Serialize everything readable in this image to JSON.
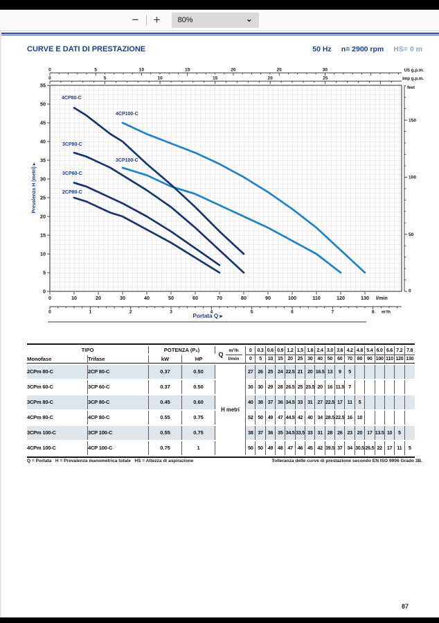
{
  "toolbar": {
    "zoom_out": "−",
    "zoom_in": "+",
    "zoom_level": "80%"
  },
  "header": {
    "title": "CURVE E DATI DI PRESTAZIONE",
    "frequency": "50 Hz",
    "speed": "n= 2900 rpm",
    "suction": "HS= 0 m"
  },
  "chart_data": {
    "type": "line",
    "xlabel": "Portata Q",
    "ylabel": "Prevalenza H (metri)",
    "grid": true,
    "legend_position": "labels-on-curves",
    "axes": {
      "x_lmin": {
        "unit": "l/min",
        "ticks": [
          0,
          10,
          20,
          30,
          40,
          50,
          60,
          70,
          80,
          90,
          100,
          110,
          120,
          130
        ]
      },
      "x_m3h": {
        "unit": "m³/h",
        "ticks": [
          0,
          1,
          2,
          3,
          4,
          5,
          6,
          7,
          8
        ]
      },
      "x_usgpm": {
        "unit": "US g.p.m.",
        "ticks": [
          0,
          5,
          10,
          15,
          20,
          25,
          30
        ]
      },
      "x_impgpm": {
        "unit": "Imp g.p.m.",
        "ticks": [
          0,
          5,
          10,
          15,
          20,
          25
        ]
      },
      "y_m": {
        "unit": "metri",
        "ticks": [
          0,
          5,
          10,
          15,
          20,
          25,
          30,
          35,
          40,
          45,
          50,
          55
        ],
        "range": [
          0,
          55
        ]
      },
      "y_feet": {
        "unit": "feet",
        "ticks": [
          0,
          50,
          100,
          150
        ]
      }
    },
    "series": [
      {
        "name": "4CP100-C",
        "color": "#1e83c9",
        "label_pos": [
          128,
          71
        ],
        "q_lmin": [
          30,
          40,
          50,
          60,
          70,
          80,
          90,
          100,
          110,
          120,
          130
        ],
        "h_m": [
          45,
          42,
          39.5,
          37,
          34,
          30.5,
          26.5,
          22,
          17,
          11,
          5
        ]
      },
      {
        "name": "3CP100-C",
        "color": "#1e83c9",
        "label_pos": [
          128,
          138
        ],
        "q_lmin": [
          30,
          40,
          50,
          60,
          70,
          80,
          90,
          100,
          110,
          120
        ],
        "h_m": [
          33,
          31,
          28,
          26,
          23,
          20,
          17,
          13.5,
          10,
          5
        ]
      },
      {
        "name": "4CP80-C",
        "color": "#17356e",
        "label_pos": [
          50,
          48
        ],
        "q_lmin": [
          10,
          15,
          20,
          25,
          30,
          40,
          50,
          60,
          70,
          80
        ],
        "h_m": [
          49,
          47,
          44.5,
          42,
          40,
          34,
          28.5,
          22.5,
          16,
          10
        ]
      },
      {
        "name": "3CP80-C",
        "color": "#17356e",
        "label_pos": [
          51,
          115
        ],
        "q_lmin": [
          10,
          15,
          20,
          25,
          30,
          40,
          50,
          60,
          70,
          80
        ],
        "h_m": [
          37,
          36,
          34.5,
          33,
          31,
          27,
          22.5,
          17,
          11,
          5
        ]
      },
      {
        "name": "3CP60-C",
        "color": "#17356e",
        "label_pos": [
          51,
          157
        ],
        "q_lmin": [
          10,
          15,
          20,
          25,
          30,
          40,
          50,
          60,
          70
        ],
        "h_m": [
          29,
          28,
          26.5,
          25,
          23.5,
          20,
          16,
          11.5,
          7
        ]
      },
      {
        "name": "2CP80-C",
        "color": "#17356e",
        "label_pos": [
          51,
          184
        ],
        "q_lmin": [
          10,
          15,
          20,
          25,
          30,
          40,
          50,
          60,
          70
        ],
        "h_m": [
          25,
          24,
          22.5,
          21,
          20,
          16.5,
          13,
          9,
          5
        ]
      }
    ]
  },
  "table": {
    "group_tipo": "TIPO",
    "group_potenza": "POTENZA (P₂)",
    "col_monofase": "Monofase",
    "col_trifase": "Trifase",
    "col_kw": "kW",
    "col_hp": "HP",
    "q_label": "Q",
    "unit_m3h": "m³/h",
    "unit_lmin": "l/min",
    "h_label_b": "H",
    "h_label_rest": " metri",
    "flow_m3h": [
      "0",
      "0.3",
      "0.6",
      "0.9",
      "1.2",
      "1.5",
      "1.8",
      "2.4",
      "3.0",
      "3.6",
      "4.2",
      "4.8",
      "5.4",
      "6.0",
      "6.6",
      "7.2",
      "7.8"
    ],
    "flow_lmin": [
      "0",
      "5",
      "10",
      "15",
      "20",
      "25",
      "30",
      "40",
      "50",
      "60",
      "70",
      "80",
      "90",
      "100",
      "110",
      "120",
      "130"
    ],
    "rows": [
      {
        "monofase": "2CPm 80-C",
        "trifase": "2CP 80-C",
        "kw": "0.37",
        "hp": "0.50",
        "h": [
          "27",
          "26",
          "25",
          "24",
          "22.5",
          "21",
          "20",
          "16.5",
          "13",
          "9",
          "5",
          "",
          "",
          "",
          "",
          "",
          ""
        ]
      },
      {
        "monofase": "3CPm 60-C",
        "trifase": "3CP 60-C",
        "kw": "0.37",
        "hp": "0.50",
        "h": [
          "30",
          "30",
          "29",
          "28",
          "26.5",
          "25",
          "23.5",
          "20",
          "16",
          "11.5",
          "7",
          "",
          "",
          "",
          "",
          "",
          ""
        ]
      },
      {
        "monofase": "3CPm 80-C",
        "trifase": "3CP 80-C",
        "kw": "0.45",
        "hp": "0.60",
        "h": [
          "40",
          "38",
          "37",
          "36",
          "34.5",
          "33",
          "31",
          "27",
          "22.5",
          "17",
          "11",
          "5",
          "",
          "",
          "",
          "",
          ""
        ]
      },
      {
        "monofase": "4CPm 80-C",
        "trifase": "4CP 80-C",
        "kw": "0.55",
        "hp": "0.75",
        "h": [
          "52",
          "50",
          "49",
          "47",
          "44.5",
          "42",
          "40",
          "34",
          "28.5",
          "22.5",
          "16",
          "10",
          "",
          "",
          "",
          "",
          ""
        ]
      },
      {
        "monofase": "3CPm 100-C",
        "trifase": "3CP 100-C",
        "kw": "0.55",
        "hp": "0.75",
        "h": [
          "38",
          "37",
          "36",
          "35",
          "34.5",
          "33.5",
          "33",
          "31",
          "28",
          "26",
          "23",
          "20",
          "17",
          "13.5",
          "10",
          "5",
          ""
        ]
      },
      {
        "monofase": "4CPm 100-C",
        "trifase": "4CP 100-C",
        "kw": "0.75",
        "hp": "1",
        "h": [
          "50",
          "50",
          "49",
          "48",
          "47",
          "46",
          "45",
          "42",
          "39.5",
          "37",
          "34",
          "30.5",
          "26.5",
          "22",
          "17",
          "11",
          "5"
        ]
      }
    ]
  },
  "footnotes": {
    "legend": "Q = Portata   H = Prevalenza manometrica totale   HS = Altezza di aspirazione",
    "tolerance": "Tolleranza delle curve di prestazione secondo EN ISO 9906 Grado 3B."
  },
  "page_number": "87"
}
